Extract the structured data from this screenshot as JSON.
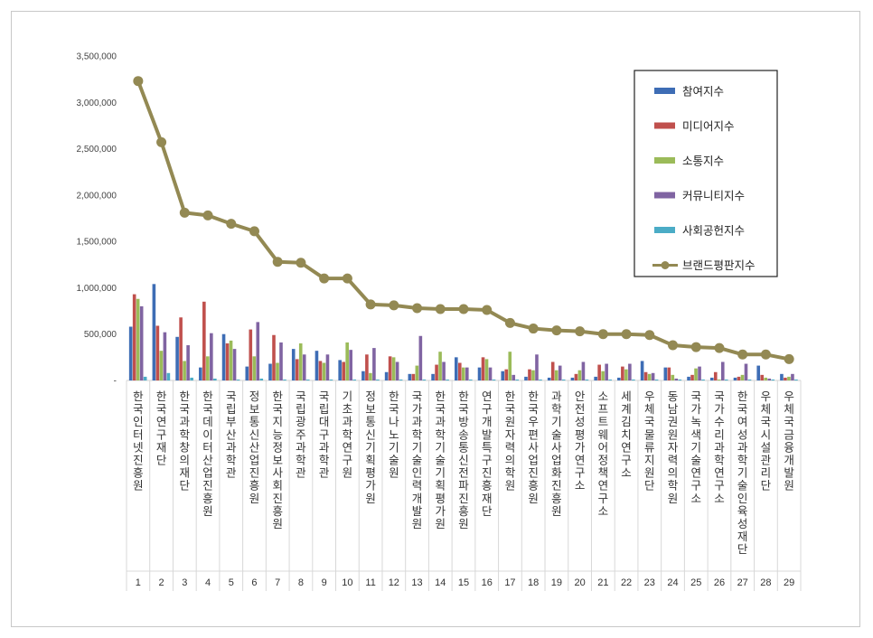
{
  "chart_data": {
    "type": "bar",
    "title": "",
    "xlabel": "",
    "ylabel": "",
    "ylim": [
      0,
      3500000
    ],
    "yticks": [
      "-",
      "500,000",
      "1,000,000",
      "1,500,000",
      "2,000,000",
      "2,500,000",
      "3,000,000",
      "3,500,000"
    ],
    "grid": false,
    "legend_position": "top-right",
    "ranks": [
      "1",
      "2",
      "3",
      "4",
      "5",
      "6",
      "7",
      "8",
      "9",
      "10",
      "11",
      "12",
      "13",
      "14",
      "15",
      "16",
      "17",
      "18",
      "19",
      "20",
      "21",
      "22",
      "23",
      "24",
      "25",
      "26",
      "27",
      "28",
      "29"
    ],
    "categories": [
      "한국인터넷진흥원",
      "한국연구재단",
      "한국과학창의재단",
      "한국데이터산업진흥원",
      "국립부산과학관",
      "정보통신산업진흥원",
      "한국지능정보사회진흥원",
      "국립광주과학관",
      "국립대구과학관",
      "기초과학연구원",
      "정보통신기획평가원",
      "한국나노기술원",
      "국가과학기술인력개발원",
      "한국과학기술기획평가원",
      "한국방송통신전파진흥원",
      "연구개발특구진흥재단",
      "한국원자력의학원",
      "한국우편사업진흥원",
      "과학기술사업화진흥원",
      "안전성평가연구소",
      "소프트웨어정책연구소",
      "세계김치연구소",
      "우체국물류지원단",
      "동남권원자력의학원",
      "국가녹색기술연구소",
      "국가수리과학연구소",
      "한국여성과학기술인육성재단",
      "우체국시설관리단",
      "우체국금융개발원"
    ],
    "series": [
      {
        "name": "참여지수",
        "color": "#3e6db5",
        "type": "bar",
        "values": [
          580000,
          1040000,
          470000,
          140000,
          500000,
          150000,
          180000,
          340000,
          320000,
          220000,
          100000,
          90000,
          70000,
          70000,
          250000,
          140000,
          100000,
          40000,
          30000,
          30000,
          40000,
          30000,
          210000,
          140000,
          40000,
          30000,
          30000,
          160000,
          70000
        ]
      },
      {
        "name": "미디어지수",
        "color": "#c0504d",
        "type": "bar",
        "values": [
          930000,
          590000,
          680000,
          850000,
          400000,
          550000,
          490000,
          230000,
          210000,
          200000,
          280000,
          260000,
          70000,
          170000,
          190000,
          250000,
          120000,
          120000,
          200000,
          70000,
          170000,
          150000,
          90000,
          140000,
          60000,
          90000,
          40000,
          60000,
          30000
        ]
      },
      {
        "name": "소통지수",
        "color": "#9bbb59",
        "type": "bar",
        "values": [
          880000,
          320000,
          210000,
          260000,
          430000,
          260000,
          190000,
          400000,
          190000,
          410000,
          80000,
          250000,
          160000,
          310000,
          140000,
          230000,
          310000,
          110000,
          110000,
          110000,
          100000,
          120000,
          70000,
          60000,
          130000,
          10000,
          60000,
          30000,
          40000
        ]
      },
      {
        "name": "커뮤니티지수",
        "color": "#8064a2",
        "type": "bar",
        "values": [
          800000,
          520000,
          380000,
          510000,
          340000,
          630000,
          410000,
          280000,
          280000,
          330000,
          350000,
          200000,
          480000,
          200000,
          140000,
          140000,
          60000,
          280000,
          160000,
          200000,
          180000,
          180000,
          80000,
          20000,
          150000,
          200000,
          180000,
          20000,
          70000
        ]
      },
      {
        "name": "사회공헌지수",
        "color": "#4bacc6",
        "type": "bar",
        "values": [
          40000,
          80000,
          30000,
          20000,
          10000,
          20000,
          10000,
          10000,
          10000,
          10000,
          10000,
          10000,
          10000,
          10000,
          10000,
          10000,
          10000,
          10000,
          10000,
          10000,
          10000,
          10000,
          10000,
          10000,
          10000,
          10000,
          10000,
          10000,
          10000
        ]
      },
      {
        "name": "브랜드평판지수",
        "color": "#938953",
        "type": "line",
        "values": [
          3230000,
          2570000,
          1810000,
          1780000,
          1690000,
          1610000,
          1280000,
          1270000,
          1100000,
          1100000,
          820000,
          810000,
          780000,
          770000,
          770000,
          760000,
          620000,
          560000,
          540000,
          530000,
          500000,
          500000,
          490000,
          380000,
          360000,
          350000,
          280000,
          280000,
          230000
        ]
      }
    ]
  }
}
